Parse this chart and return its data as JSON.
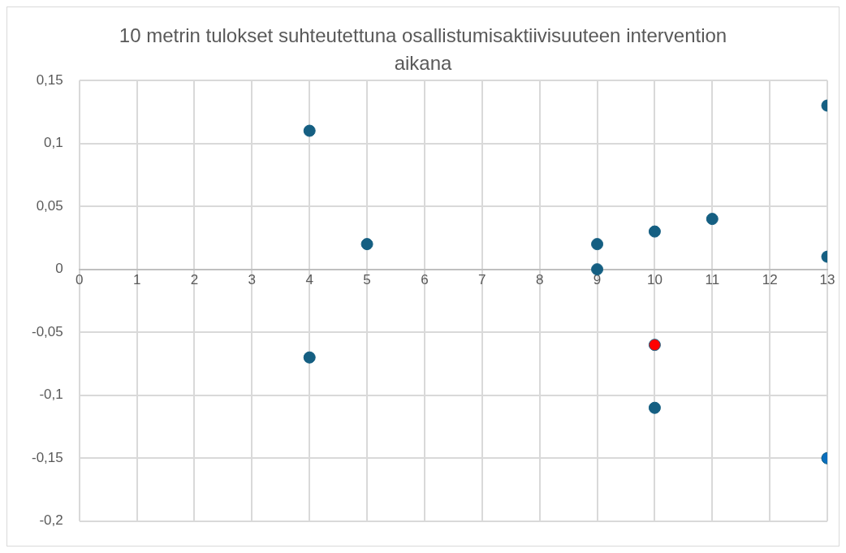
{
  "chart_data": {
    "type": "scatter",
    "title": "10 metrin tulokset suhteutettuna osallistumisaktiivisuuteen intervention aikana",
    "x": [
      4,
      4,
      5,
      9,
      9,
      10,
      10,
      10,
      11,
      13,
      13,
      13
    ],
    "values": [
      0.11,
      -0.07,
      0.02,
      0.02,
      0,
      0.03,
      -0.06,
      -0.11,
      0.04,
      0.13,
      0.01,
      -0.15
    ],
    "color": "#155f82",
    "colors": [
      "#155f82",
      "#155f82",
      "#155f82",
      "#155f82",
      "#155f82",
      "#155f82",
      "#ff0000",
      "#155f82",
      "#155f82",
      "#155f82",
      "#155f82",
      "#0a6ebd"
    ],
    "xlim": [
      0,
      13
    ],
    "xticks": [
      0,
      1,
      2,
      3,
      4,
      5,
      6,
      7,
      8,
      9,
      10,
      11,
      12,
      13
    ],
    "ylim": [
      -0.2,
      0.15
    ],
    "yticks": [
      {
        "value": -0.2,
        "label": "-0,2"
      },
      {
        "value": -0.15,
        "label": "-0,15"
      },
      {
        "value": -0.1,
        "label": "-0,1"
      },
      {
        "value": -0.05,
        "label": "-0,05"
      },
      {
        "value": 0,
        "label": "0"
      },
      {
        "value": 0.05,
        "label": "0,05"
      },
      {
        "value": 0.1,
        "label": "0,1"
      },
      {
        "value": 0.15,
        "label": "0,15"
      }
    ],
    "grid": true,
    "marker": "circle"
  }
}
